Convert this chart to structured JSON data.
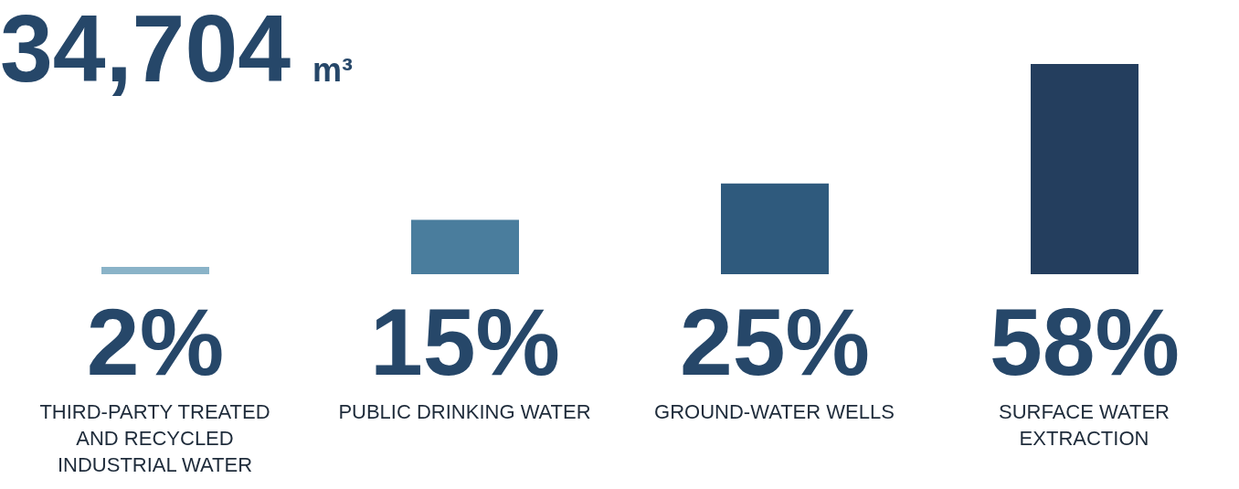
{
  "chart_data": {
    "type": "bar",
    "title": "34,704 m³",
    "categories": [
      "THIRD-PARTY TREATED AND RECYCLED INDUSTRIAL WATER",
      "PUBLIC DRINKING WATER",
      "GROUND-WATER WELLS",
      "SURFACE WATER EXTRACTION"
    ],
    "values": [
      2,
      15,
      25,
      58
    ],
    "value_labels": [
      "2%",
      "15%",
      "25%",
      "58%"
    ],
    "colors": [
      "#8ab3c8",
      "#4a7d9d",
      "#2f5a7d",
      "#243e5e"
    ]
  }
}
